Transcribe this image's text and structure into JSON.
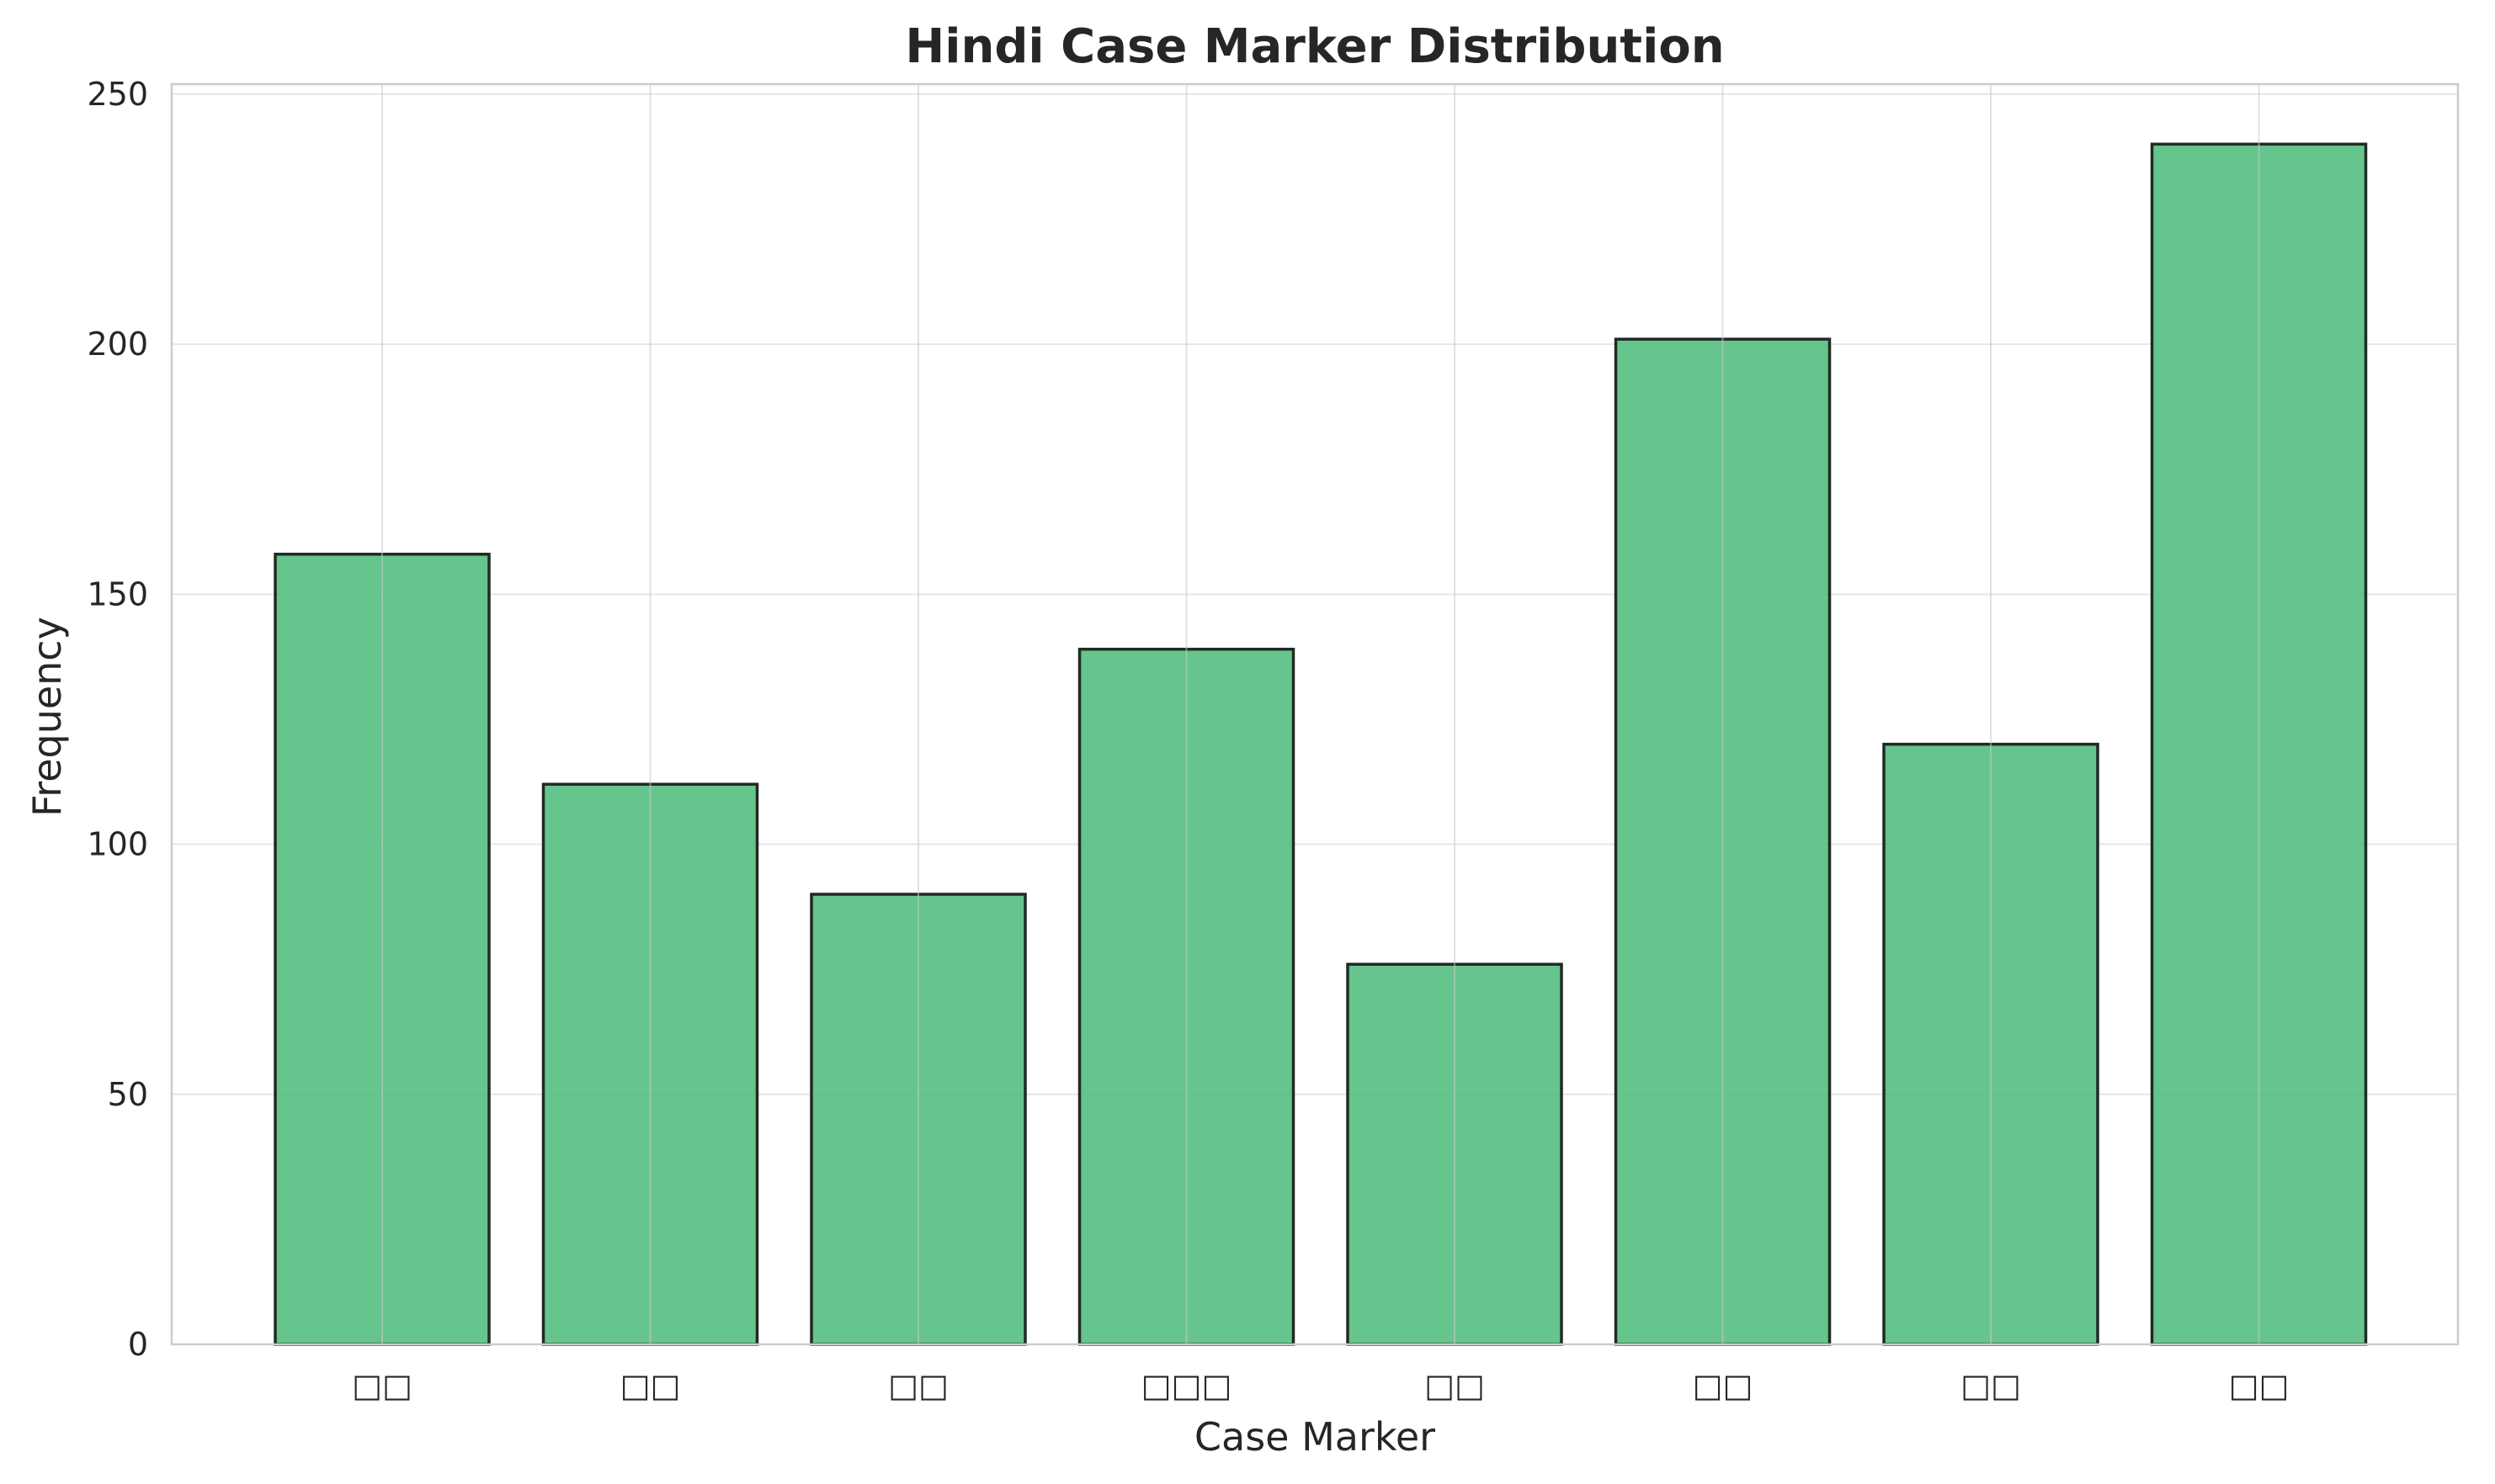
{
  "chart_data": {
    "type": "bar",
    "title": "Hindi Case Marker Distribution",
    "xlabel": "Case Marker",
    "ylabel": "Frequency",
    "categories": [
      "□□",
      "□□",
      "□□",
      "□□□",
      "□□",
      "□□",
      "□□",
      "□□"
    ],
    "values": [
      158,
      112,
      90,
      139,
      76,
      201,
      120,
      240
    ],
    "ylim": [
      0,
      252
    ],
    "yticks": [
      0,
      50,
      100,
      150,
      200,
      250
    ],
    "grid": true,
    "legend": "none",
    "colors": {
      "bar_fill": "#4dba7a",
      "bar_edge": "#1f2b22",
      "grid": "#e6e6e6",
      "spine": "#cccccc",
      "text": "#262626"
    }
  }
}
